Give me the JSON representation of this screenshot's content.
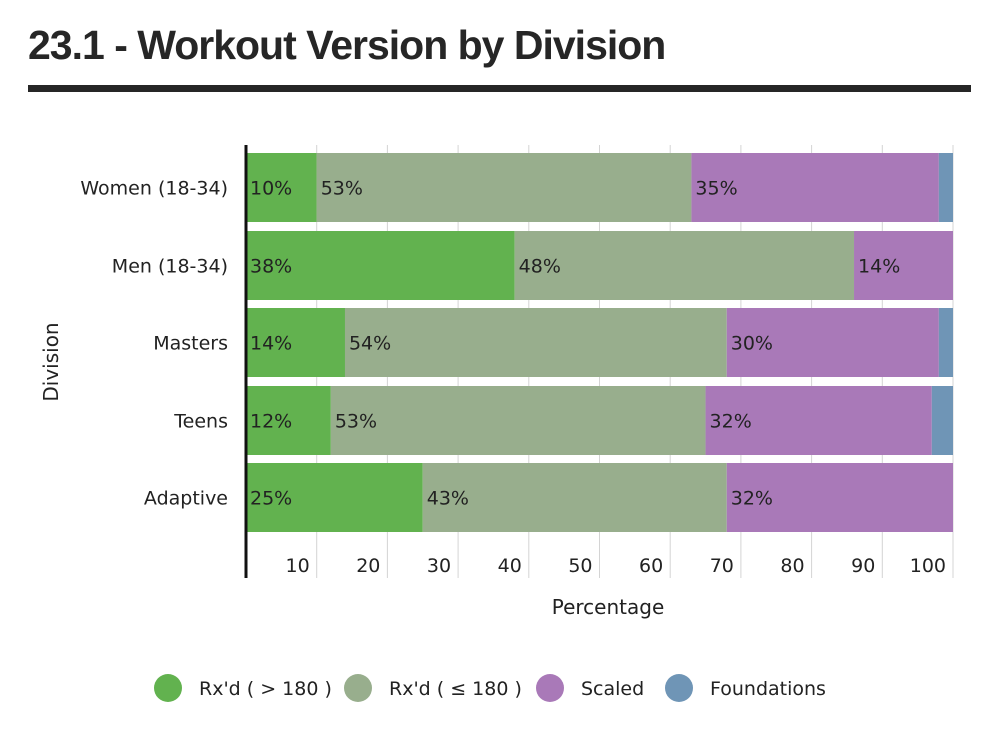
{
  "title": "23.1 - Workout Version by Division",
  "chart_data": {
    "type": "bar",
    "orientation": "horizontal",
    "stacked": true,
    "categories": [
      "Women (18-34)",
      "Men (18-34)",
      "Masters",
      "Teens",
      "Adaptive"
    ],
    "series": [
      {
        "name": "Rx'd ( > 180 )",
        "color": "#62b24f",
        "values": [
          10,
          38,
          14,
          12,
          25
        ],
        "labels": [
          "10%",
          "38%",
          "14%",
          "12%",
          "25%"
        ]
      },
      {
        "name": "Rx'd ( ≤ 180 )",
        "color": "#98ae8d",
        "values": [
          53,
          48,
          54,
          53,
          43
        ],
        "labels": [
          "53%",
          "48%",
          "54%",
          "53%",
          "43%"
        ]
      },
      {
        "name": "Scaled",
        "color": "#a979b8",
        "values": [
          35,
          14,
          30,
          32,
          32
        ],
        "labels": [
          "35%",
          "14%",
          "30%",
          "32%",
          "32%"
        ]
      },
      {
        "name": "Foundations",
        "color": "#6f95b6",
        "values": [
          2,
          0,
          2,
          3,
          0
        ],
        "labels": [
          "",
          "",
          "",
          "",
          ""
        ]
      }
    ],
    "xlabel": "Percentage",
    "ylabel": "Division",
    "xlim": [
      0,
      100
    ],
    "xticks": [
      10,
      20,
      30,
      40,
      50,
      60,
      70,
      80,
      90,
      100
    ],
    "grid": true,
    "legend_position": "bottom"
  }
}
